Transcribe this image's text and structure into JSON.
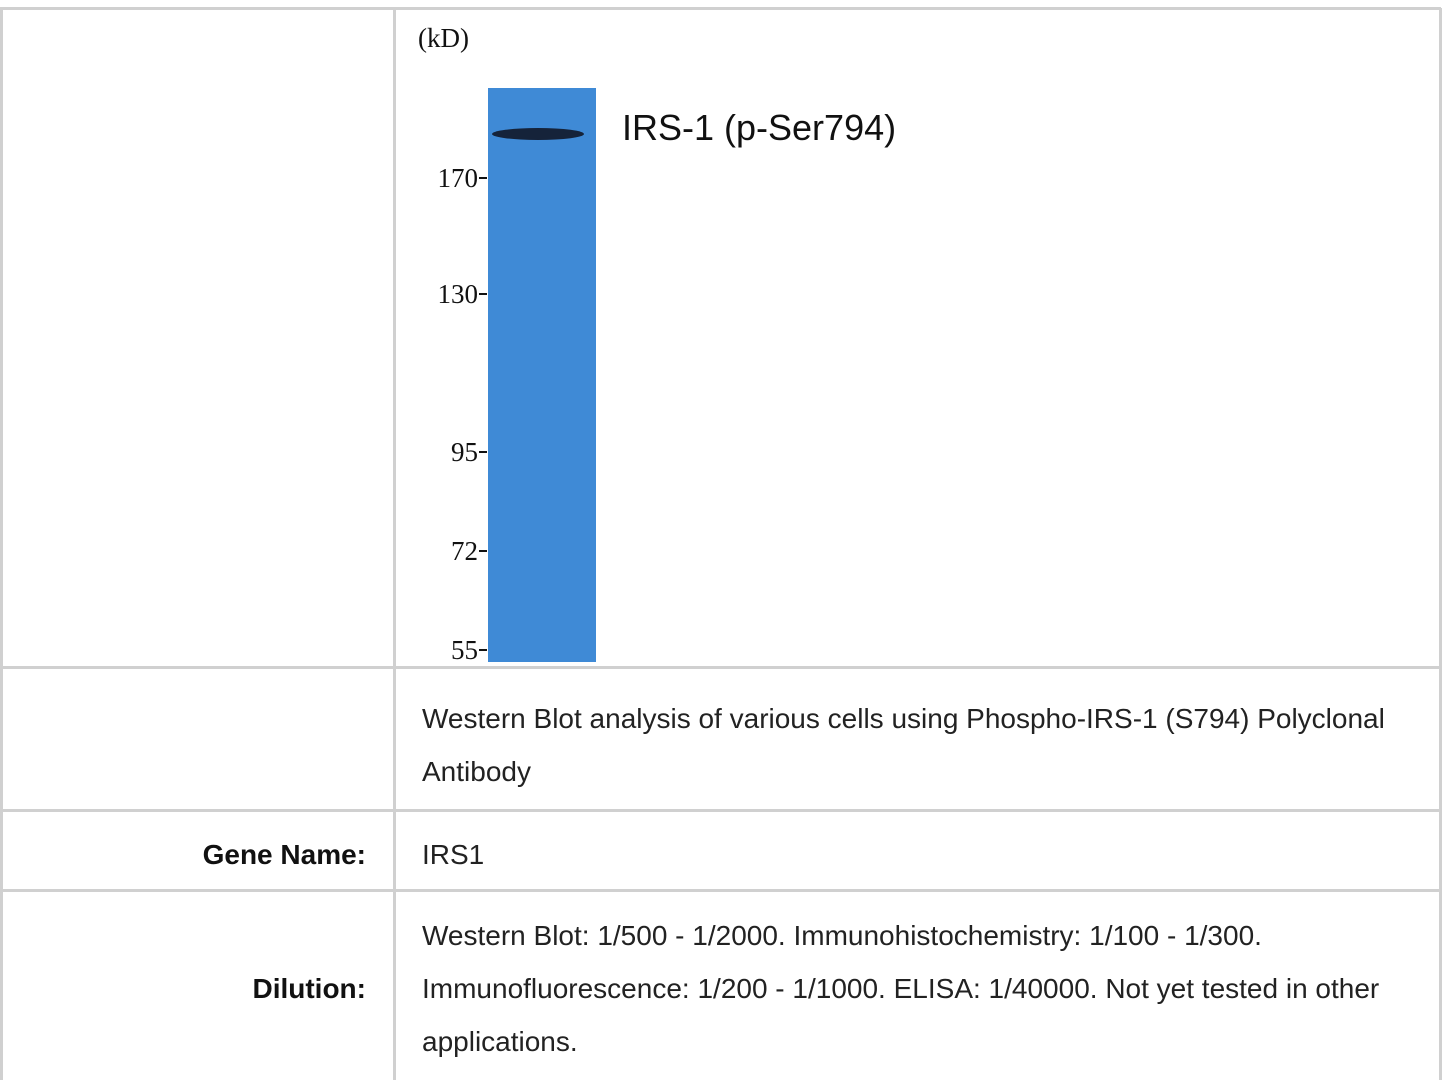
{
  "blot": {
    "unit_label": "(kD)",
    "band_label": "IRS-1 (p-Ser794)",
    "markers": [
      170,
      130,
      95,
      72,
      55
    ]
  },
  "caption": "Western Blot analysis of various cells using Phospho-IRS-1 (S794) Polyclonal Antibody",
  "table": {
    "rows": [
      [
        "Gene Name:",
        "IRS1"
      ],
      [
        "Dilution:",
        "Western Blot: 1/500 - 1/2000. Immunohistochemistry: 1/100 - 1/300. Immunofluorescence: 1/200 - 1/1000. ELISA: 1/40000. Not yet tested in other applications."
      ]
    ]
  }
}
